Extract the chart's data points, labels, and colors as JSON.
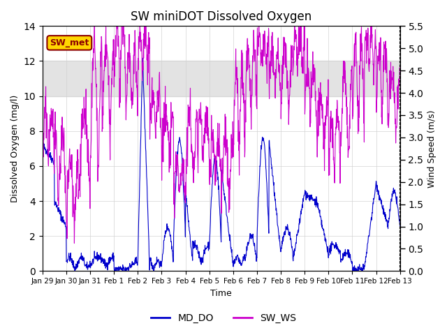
{
  "title": "SW miniDOT Dissolved Oxygen",
  "xlabel": "Time",
  "ylabel_left": "Dissolved Oxygen (mg/l)",
  "ylabel_right": "Wind Speed (m/s)",
  "annotation_text": "SW_met",
  "annotation_color": "#8B0000",
  "annotation_bg": "#FFD700",
  "legend_labels": [
    "MD_DO",
    "SW_WS"
  ],
  "line_color_do": "#0000CC",
  "line_color_ws": "#CC00CC",
  "ylim_left": [
    0,
    14
  ],
  "ylim_right": [
    0.0,
    5.5
  ],
  "shade_band": [
    10,
    12
  ],
  "shade_color": "#DCDCDC",
  "xtick_labels": [
    "Jan 29",
    "Jan 30",
    "Jan 31",
    "Feb 1",
    "Feb 2",
    "Feb 3",
    "Feb 4",
    "Feb 5",
    "Feb 6",
    "Feb 7",
    "Feb 8",
    "Feb 9",
    "Feb 10",
    "Feb 11",
    "Feb 12",
    "Feb 13"
  ],
  "right_yticks": [
    0.0,
    0.5,
    1.0,
    1.5,
    2.0,
    2.5,
    3.0,
    3.5,
    4.0,
    4.5,
    5.0,
    5.5
  ],
  "n_days": 15
}
